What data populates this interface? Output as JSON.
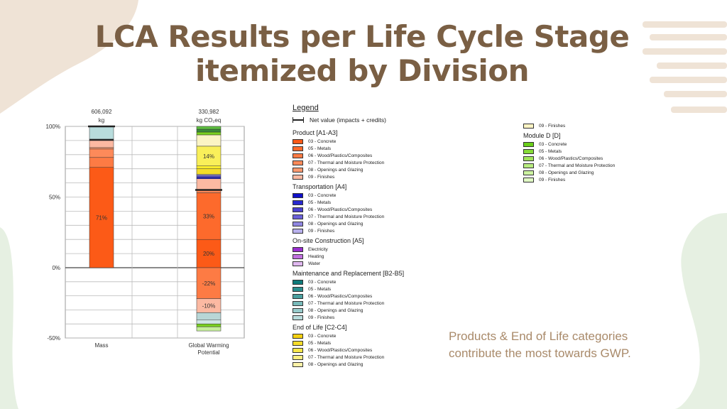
{
  "title_line1": "LCA Results per Life Cycle Stage",
  "title_line2": "itemized by Division",
  "caption_line1": "Products & End of Life categories",
  "caption_line2": "contribute the most towards GWP.",
  "colors": {
    "title": "#7a5f44",
    "caption": "#a98a6a",
    "deco_tan": "#efe3d6",
    "deco_green": "#e6f0e2"
  },
  "chart_data": {
    "type": "bar",
    "stacked": true,
    "y_unit": "percent",
    "ylim": [
      -50,
      100
    ],
    "y_ticks": [
      {
        "v": 100,
        "label": "100%"
      },
      {
        "v": 50,
        "label": "50%"
      },
      {
        "v": 0,
        "label": "0%"
      },
      {
        "v": -50,
        "label": "-50%"
      }
    ],
    "categories": [
      "Mass",
      "Global Warming Potential"
    ],
    "category_labels": [
      [
        "Mass"
      ],
      [
        "Global Warming",
        "Potential"
      ]
    ],
    "totals": [
      {
        "value": "606,092",
        "unit": "kg"
      },
      {
        "value": "330,982",
        "unit": "kg CO₂eq"
      }
    ],
    "net_markers": [
      100,
      55
    ],
    "segments": [
      [
        {
          "from": 0,
          "to": 71,
          "color": "#fc5a17",
          "label": "71%"
        },
        {
          "from": 71,
          "to": 78,
          "color": "#fd7b44"
        },
        {
          "from": 78,
          "to": 84,
          "color": "#fd8a5a"
        },
        {
          "from": 84,
          "to": 85,
          "color": "#fd9a70"
        },
        {
          "from": 85,
          "to": 90,
          "color": "#fcb9a2"
        },
        {
          "from": 90,
          "to": 91,
          "color": "#1a1a1a"
        },
        {
          "from": 91,
          "to": 100,
          "color": "#b8dcdc"
        }
      ],
      [
        {
          "from": 0,
          "to": 20,
          "color": "#fc5a17",
          "label": "20%"
        },
        {
          "from": 20,
          "to": 53,
          "color": "#fd6a2c",
          "label": "33%"
        },
        {
          "from": 53,
          "to": 55,
          "color": "#fd8a5a"
        },
        {
          "from": 55,
          "to": 63,
          "color": "#fcb9a2"
        },
        {
          "from": 63,
          "to": 64,
          "color": "#1b1bd0"
        },
        {
          "from": 64,
          "to": 65,
          "color": "#5a50d0"
        },
        {
          "from": 65,
          "to": 66,
          "color": "#8f86e0"
        },
        {
          "from": 66,
          "to": 70,
          "color": "#f4dc2a"
        },
        {
          "from": 70,
          "to": 72,
          "color": "#f9ec2c"
        },
        {
          "from": 72,
          "to": 86,
          "color": "#f9ef5a",
          "label": "14%"
        },
        {
          "from": 86,
          "to": 94,
          "color": "#fbf4c4"
        },
        {
          "from": 94,
          "to": 96,
          "color": "#7ad21e"
        },
        {
          "from": 96,
          "to": 98,
          "color": "#3a8a3a"
        },
        {
          "from": 98,
          "to": 100,
          "color": "#5ec040"
        },
        {
          "from": 0,
          "to": -22,
          "color": "#fd7b44",
          "label": "-22%"
        },
        {
          "from": -22,
          "to": -32,
          "color": "#fcb9a2",
          "label": "-10%"
        },
        {
          "from": -32,
          "to": -37,
          "color": "#b8d6d6"
        },
        {
          "from": -37,
          "to": -40,
          "color": "#d0e6e6"
        },
        {
          "from": -40,
          "to": -42,
          "color": "#7ad21e"
        },
        {
          "from": -42,
          "to": -45,
          "color": "#c4ee9a"
        }
      ]
    ]
  },
  "legend": {
    "title": "Legend",
    "net_label": "Net value (impacts + credits)",
    "col1": [
      {
        "title": "Product [A1-A3]",
        "items": [
          {
            "label": "03 - Concrete",
            "color": "#fc5a17"
          },
          {
            "label": "05 - Metals",
            "color": "#fd6a2c"
          },
          {
            "label": "06 - Wood/Plastics/Composites",
            "color": "#fd7b44"
          },
          {
            "label": "07 - Thermal and Moisture Protection",
            "color": "#fd8a5a"
          },
          {
            "label": "08 - Openings and Glazing",
            "color": "#fd9a70"
          },
          {
            "label": "09 - Finishes",
            "color": "#fcb9a2"
          }
        ]
      },
      {
        "title": "Transportation [A4]",
        "items": [
          {
            "label": "03 - Concrete",
            "color": "#1010c8"
          },
          {
            "label": "05 - Metals",
            "color": "#2828d0"
          },
          {
            "label": "06 - Wood/Plastics/Composites",
            "color": "#4a40d0"
          },
          {
            "label": "07 - Thermal and Moisture Protection",
            "color": "#6a60d8"
          },
          {
            "label": "08 - Openings and Glazing",
            "color": "#8f86e0"
          },
          {
            "label": "09 - Finishes",
            "color": "#b8b0ec"
          }
        ]
      },
      {
        "title": "On-site Construction [A5]",
        "items": [
          {
            "label": "Electricity",
            "color": "#9a2ed0"
          },
          {
            "label": "Heating",
            "color": "#c070e0"
          },
          {
            "label": "Water",
            "color": "#e0b8f0"
          }
        ]
      },
      {
        "title": "Maintenance and Replacement [B2-B5]",
        "items": [
          {
            "label": "03 - Concrete",
            "color": "#0e7a7a"
          },
          {
            "label": "05 - Metals",
            "color": "#2a8e8e"
          },
          {
            "label": "06 - Wood/Plastics/Composites",
            "color": "#4aa0a0"
          },
          {
            "label": "07 - Thermal and Moisture Protection",
            "color": "#78baba"
          },
          {
            "label": "08 - Openings and Glazing",
            "color": "#98cccc"
          },
          {
            "label": "09 - Finishes",
            "color": "#b8dcdc"
          }
        ]
      },
      {
        "title": "End of Life [C2-C4]",
        "items": [
          {
            "label": "03 - Concrete",
            "color": "#f4d010"
          },
          {
            "label": "05 - Metals",
            "color": "#f6dc2a"
          },
          {
            "label": "06 - Wood/Plastics/Composites",
            "color": "#f9e84a"
          },
          {
            "label": "07 - Thermal and Moisture Protection",
            "color": "#fbef80"
          },
          {
            "label": "08 - Openings and Glazing",
            "color": "#fcf2a8"
          }
        ]
      }
    ],
    "col2_top": [
      {
        "label": "09 - Finishes",
        "color": "#fcf4c4"
      }
    ],
    "col2": [
      {
        "title": "Module D [D]",
        "items": [
          {
            "label": "03 - Concrete",
            "color": "#6ad01a"
          },
          {
            "label": "05 - Metals",
            "color": "#86dc38"
          },
          {
            "label": "06 - Wood/Plastics/Composites",
            "color": "#a0e45a"
          },
          {
            "label": "07 - Thermal and Moisture Protection",
            "color": "#b8ec80"
          },
          {
            "label": "08 - Openings and Glazing",
            "color": "#ccf2a0"
          },
          {
            "label": "09 - Finishes",
            "color": "#e0f8c4"
          }
        ]
      }
    ]
  }
}
